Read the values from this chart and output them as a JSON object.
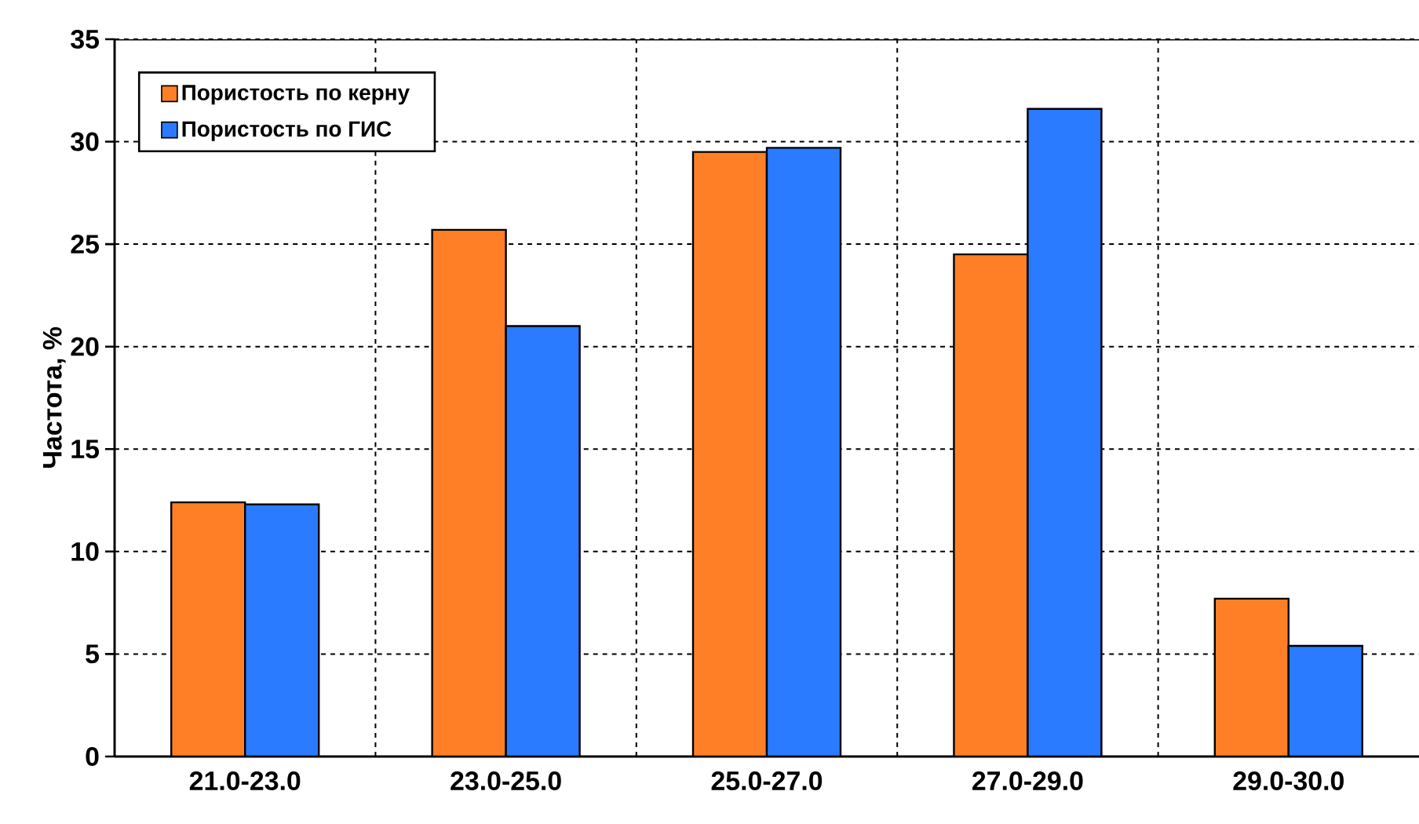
{
  "chart_data": {
    "type": "bar",
    "ylabel": "Частота, %",
    "categories": [
      "21.0-23.0",
      "23.0-25.0",
      "25.0-27.0",
      "27.0-29.0",
      "29.0-30.0"
    ],
    "series": [
      {
        "name": "Пористость по керну",
        "color": "#ff7f27",
        "values": [
          12.4,
          25.7,
          29.5,
          24.5,
          7.7
        ]
      },
      {
        "name": "Пористость по ГИС",
        "color": "#2a7bff",
        "values": [
          12.3,
          21.0,
          29.7,
          31.6,
          5.4
        ]
      }
    ],
    "ylim": [
      0,
      35
    ],
    "yticks": [
      0,
      5,
      10,
      15,
      20,
      25,
      30,
      35
    ],
    "grid": true,
    "legend": "top left"
  }
}
